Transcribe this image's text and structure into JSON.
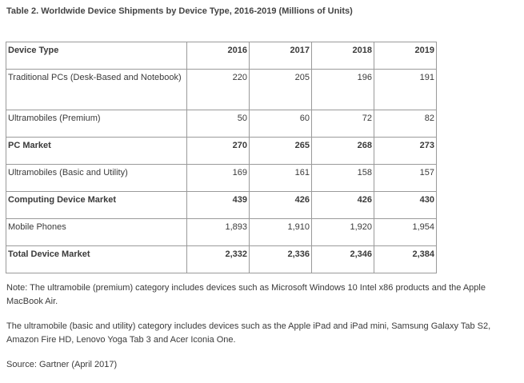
{
  "title": "Table 2. Worldwide Device Shipments by Device Type, 2016-2019 (Millions of Units)",
  "table": {
    "headers": [
      "Device Type",
      "2016",
      "2017",
      "2018",
      "2019"
    ],
    "rows": [
      {
        "label": "Traditional PCs (Desk-Based and Notebook)",
        "values": [
          "220",
          "205",
          "196",
          "191"
        ],
        "bold": false
      },
      {
        "label": "Ultramobiles (Premium)",
        "values": [
          "50",
          "60",
          "72",
          "82"
        ],
        "bold": false
      },
      {
        "label": "PC Market",
        "values": [
          "270",
          "265",
          "268",
          "273"
        ],
        "bold": true
      },
      {
        "label": "Ultramobiles (Basic and Utility)",
        "values": [
          "169",
          "161",
          "158",
          "157"
        ],
        "bold": false
      },
      {
        "label": "Computing Device Market",
        "values": [
          "439",
          "426",
          "426",
          "430"
        ],
        "bold": true
      },
      {
        "label": "Mobile Phones",
        "values": [
          "1,893",
          "1,910",
          "1,920",
          "1,954"
        ],
        "bold": false
      },
      {
        "label": "Total Device Market",
        "values": [
          "2,332",
          "2,336",
          "2,346",
          "2,384"
        ],
        "bold": true
      }
    ]
  },
  "notes": [
    "Note: The ultramobile (premium) category includes devices such as Microsoft Windows 10 Intel x86 products and the Apple MacBook Air.",
    "The ultramobile (basic and utility) category includes devices such as the Apple iPad and iPad mini, Samsung Galaxy Tab S2, Amazon Fire HD, Lenovo Yoga Tab 3 and Acer Iconia One.",
    "Source: Gartner (April 2017)"
  ]
}
